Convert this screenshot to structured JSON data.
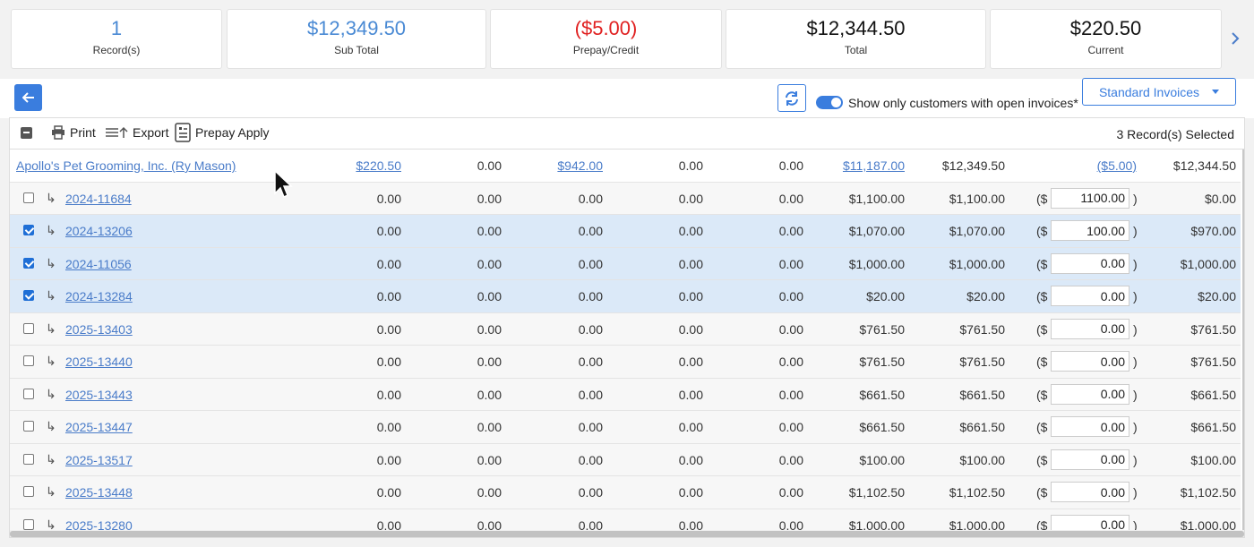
{
  "summary": {
    "cards": [
      {
        "value": "1",
        "label": "Record(s)",
        "color": "#4a8ad4"
      },
      {
        "value": "$12,349.50",
        "label": "Sub Total",
        "color": "#4a8ad4"
      },
      {
        "value": "($5.00)",
        "label": "Prepay/Credit",
        "color": "#e02020"
      },
      {
        "value": "$12,344.50",
        "label": "Total",
        "color": "#111111"
      },
      {
        "value": "$220.50",
        "label": "Current",
        "color": "#111111"
      }
    ],
    "next_icon": "chevron-right-icon"
  },
  "toolbar": {
    "back_icon": "arrow-left-icon",
    "refresh_icon": "refresh-icon",
    "toggle_on": true,
    "toggle_label": "Show only customers with open invoices*",
    "invoice_type": "Standard Invoices"
  },
  "grid_tools": {
    "print_label": "Print",
    "export_label": "Export",
    "prepay_label": "Prepay Apply",
    "selected_count": "3 Record(s) Selected"
  },
  "customer_row": {
    "name": "Apollo's Pet Grooming, Inc. (Ry Mason)",
    "c1": "$220.50",
    "c2": "0.00",
    "c3": "$942.00",
    "c4": "0.00",
    "c5": "0.00",
    "c6": "$11,187.00",
    "c7": "$12,349.50",
    "c8": "($5.00)",
    "c9": "$12,344.50"
  },
  "invoice_rows": [
    {
      "checked": false,
      "invoice": "2024-11684",
      "c1": "0.00",
      "c2": "0.00",
      "c3": "0.00",
      "c4": "0.00",
      "c5": "0.00",
      "c6": "$1,100.00",
      "c7": "$1,100.00",
      "prepay": "1100.00",
      "c9": "$0.00"
    },
    {
      "checked": true,
      "invoice": "2024-13206",
      "c1": "0.00",
      "c2": "0.00",
      "c3": "0.00",
      "c4": "0.00",
      "c5": "0.00",
      "c6": "$1,070.00",
      "c7": "$1,070.00",
      "prepay": "100.00",
      "c9": "$970.00"
    },
    {
      "checked": true,
      "invoice": "2024-11056",
      "c1": "0.00",
      "c2": "0.00",
      "c3": "0.00",
      "c4": "0.00",
      "c5": "0.00",
      "c6": "$1,000.00",
      "c7": "$1,000.00",
      "prepay": "0.00",
      "c9": "$1,000.00"
    },
    {
      "checked": true,
      "invoice": "2024-13284",
      "c1": "0.00",
      "c2": "0.00",
      "c3": "0.00",
      "c4": "0.00",
      "c5": "0.00",
      "c6": "$20.00",
      "c7": "$20.00",
      "prepay": "0.00",
      "c9": "$20.00"
    },
    {
      "checked": false,
      "invoice": "2025-13403",
      "c1": "0.00",
      "c2": "0.00",
      "c3": "0.00",
      "c4": "0.00",
      "c5": "0.00",
      "c6": "$761.50",
      "c7": "$761.50",
      "prepay": "0.00",
      "c9": "$761.50"
    },
    {
      "checked": false,
      "invoice": "2025-13440",
      "c1": "0.00",
      "c2": "0.00",
      "c3": "0.00",
      "c4": "0.00",
      "c5": "0.00",
      "c6": "$761.50",
      "c7": "$761.50",
      "prepay": "0.00",
      "c9": "$761.50"
    },
    {
      "checked": false,
      "invoice": "2025-13443",
      "c1": "0.00",
      "c2": "0.00",
      "c3": "0.00",
      "c4": "0.00",
      "c5": "0.00",
      "c6": "$661.50",
      "c7": "$661.50",
      "prepay": "0.00",
      "c9": "$661.50"
    },
    {
      "checked": false,
      "invoice": "2025-13447",
      "c1": "0.00",
      "c2": "0.00",
      "c3": "0.00",
      "c4": "0.00",
      "c5": "0.00",
      "c6": "$661.50",
      "c7": "$661.50",
      "prepay": "0.00",
      "c9": "$661.50"
    },
    {
      "checked": false,
      "invoice": "2025-13517",
      "c1": "0.00",
      "c2": "0.00",
      "c3": "0.00",
      "c4": "0.00",
      "c5": "0.00",
      "c6": "$100.00",
      "c7": "$100.00",
      "prepay": "0.00",
      "c9": "$100.00"
    },
    {
      "checked": false,
      "invoice": "2025-13448",
      "c1": "0.00",
      "c2": "0.00",
      "c3": "0.00",
      "c4": "0.00",
      "c5": "0.00",
      "c6": "$1,102.50",
      "c7": "$1,102.50",
      "prepay": "0.00",
      "c9": "$1,102.50"
    },
    {
      "checked": false,
      "invoice": "2025-13280",
      "c1": "0.00",
      "c2": "0.00",
      "c3": "0.00",
      "c4": "0.00",
      "c5": "0.00",
      "c6": "$1,000.00",
      "c7": "$1,000.00",
      "prepay": "0.00",
      "c9": "$1,000.00"
    }
  ],
  "symbols": {
    "paren_open": "($",
    "paren_close": ")",
    "sub_arrow": "↳"
  }
}
